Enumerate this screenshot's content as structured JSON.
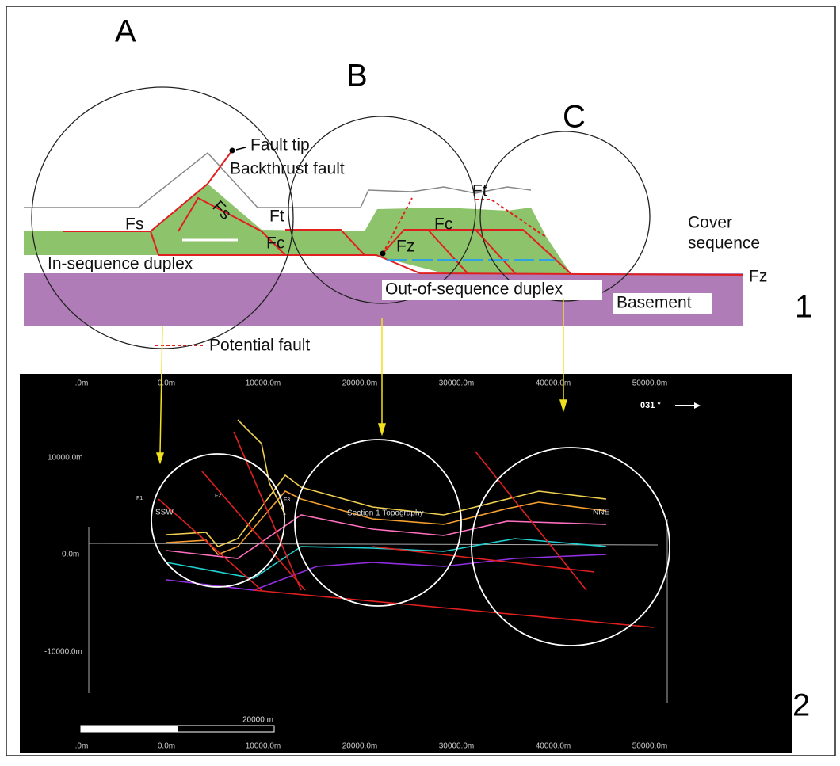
{
  "panel_1": {
    "number": "1",
    "circles": [
      "A",
      "B",
      "C"
    ],
    "labels": {
      "fault_tip": "Fault tip",
      "backthrust": "Backthrust fault",
      "fs_left": "Fs",
      "fs_ramp": "Fs",
      "ft_left": "Ft",
      "fc_left": "Fc",
      "ft_right": "Ft",
      "fc_right": "Fc",
      "fz_inner": "Fz",
      "fz_outer": "Fz",
      "cover": [
        "Cover",
        "sequence"
      ],
      "in_sequence": "In-sequence duplex",
      "out_of_sequence": "Out-of-sequence duplex",
      "basement": "Basement",
      "legend_potential": "Potential fault"
    }
  },
  "panel_2": {
    "number": "2",
    "x_tick_labels": [
      ".0m",
      "0.0m",
      "10000.0m",
      "20000.0m",
      "30000.0m",
      "40000.0m",
      "50000.0m"
    ],
    "y_tick_labels": [
      "10000.0m",
      "0.0m",
      "-10000.0m"
    ],
    "azimuth": "031 °",
    "labels": {
      "ssw": "SSW",
      "section": "Section 1 Topography",
      "nne": "NNE",
      "f1": "F1",
      "f2": "F2",
      "f3": "F3",
      "scale": "20000 m"
    }
  }
}
